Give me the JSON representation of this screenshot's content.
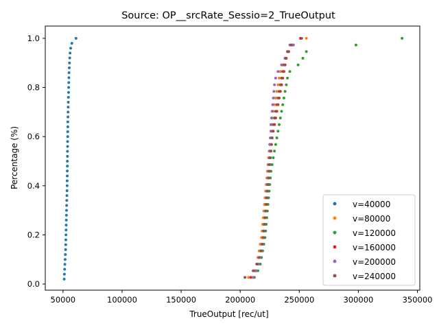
{
  "chart_data": {
    "type": "scatter",
    "title": "Source: OP__srcRate_Sessio=2_TrueOutput",
    "xlabel": "TrueOutput [rec/ut]",
    "ylabel": "Percentage (%)",
    "xlim": [
      35000,
      352000
    ],
    "ylim": [
      -0.025,
      1.05
    ],
    "xticks": [
      50000,
      100000,
      150000,
      200000,
      250000,
      300000,
      350000
    ],
    "xtick_labels": [
      "50000",
      "100000",
      "150000",
      "200000",
      "250000",
      "300000",
      "350000"
    ],
    "yticks": [
      0.0,
      0.2,
      0.4,
      0.6,
      0.8,
      1.0
    ],
    "ytick_labels": [
      "0.0",
      "0.2",
      "0.4",
      "0.6",
      "0.8",
      "1.0"
    ],
    "grid": false,
    "legend_position": "lower-right",
    "series": [
      {
        "name": "v=40000",
        "color": "#1f77b4",
        "points": [
          [
            51000,
            0.02
          ],
          [
            51200,
            0.04
          ],
          [
            51400,
            0.06
          ],
          [
            51600,
            0.08
          ],
          [
            51800,
            0.1
          ],
          [
            52000,
            0.12
          ],
          [
            52200,
            0.14
          ],
          [
            52300,
            0.16
          ],
          [
            52400,
            0.18
          ],
          [
            52500,
            0.2
          ],
          [
            52600,
            0.22
          ],
          [
            52700,
            0.24
          ],
          [
            52800,
            0.26
          ],
          [
            52900,
            0.28
          ],
          [
            53000,
            0.3
          ],
          [
            53100,
            0.32
          ],
          [
            53200,
            0.34
          ],
          [
            53300,
            0.36
          ],
          [
            53400,
            0.38
          ],
          [
            53500,
            0.4
          ],
          [
            53500,
            0.42
          ],
          [
            53600,
            0.44
          ],
          [
            53600,
            0.46
          ],
          [
            53700,
            0.48
          ],
          [
            53700,
            0.5
          ],
          [
            53800,
            0.52
          ],
          [
            53800,
            0.54
          ],
          [
            53900,
            0.56
          ],
          [
            53900,
            0.58
          ],
          [
            54000,
            0.6
          ],
          [
            54000,
            0.62
          ],
          [
            54100,
            0.64
          ],
          [
            54100,
            0.66
          ],
          [
            54200,
            0.68
          ],
          [
            54300,
            0.7
          ],
          [
            54400,
            0.72
          ],
          [
            54500,
            0.74
          ],
          [
            54600,
            0.76
          ],
          [
            54700,
            0.78
          ],
          [
            54800,
            0.8
          ],
          [
            54900,
            0.82
          ],
          [
            55000,
            0.84
          ],
          [
            55100,
            0.86
          ],
          [
            55300,
            0.88
          ],
          [
            55500,
            0.9
          ],
          [
            55700,
            0.92
          ],
          [
            56000,
            0.94
          ],
          [
            56500,
            0.96
          ],
          [
            57500,
            0.98
          ],
          [
            61000,
            1.0
          ]
        ]
      },
      {
        "name": "v=80000",
        "color": "#ff7f0e",
        "points": [
          [
            207000,
            0.027
          ],
          [
            212000,
            0.054
          ],
          [
            214000,
            0.081
          ],
          [
            215000,
            0.108
          ],
          [
            216000,
            0.135
          ],
          [
            217000,
            0.162
          ],
          [
            218000,
            0.189
          ],
          [
            218500,
            0.216
          ],
          [
            219000,
            0.243
          ],
          [
            219500,
            0.27
          ],
          [
            220000,
            0.297
          ],
          [
            220500,
            0.324
          ],
          [
            221000,
            0.351
          ],
          [
            221500,
            0.378
          ],
          [
            222000,
            0.405
          ],
          [
            222500,
            0.432
          ],
          [
            223000,
            0.459
          ],
          [
            223500,
            0.486
          ],
          [
            224000,
            0.514
          ],
          [
            224500,
            0.541
          ],
          [
            225000,
            0.568
          ],
          [
            225500,
            0.595
          ],
          [
            226000,
            0.622
          ],
          [
            226500,
            0.649
          ],
          [
            227000,
            0.676
          ],
          [
            228000,
            0.703
          ],
          [
            229000,
            0.73
          ],
          [
            230000,
            0.757
          ],
          [
            231000,
            0.784
          ],
          [
            232000,
            0.811
          ],
          [
            233000,
            0.838
          ],
          [
            234000,
            0.865
          ],
          [
            236000,
            0.892
          ],
          [
            238000,
            0.919
          ],
          [
            241000,
            0.946
          ],
          [
            245000,
            0.973
          ],
          [
            256000,
            1.0
          ]
        ]
      },
      {
        "name": "v=120000",
        "color": "#2ca02c",
        "points": [
          [
            212000,
            0.027
          ],
          [
            215000,
            0.054
          ],
          [
            217000,
            0.081
          ],
          [
            218000,
            0.108
          ],
          [
            219000,
            0.135
          ],
          [
            220000,
            0.162
          ],
          [
            221000,
            0.189
          ],
          [
            221500,
            0.216
          ],
          [
            222000,
            0.243
          ],
          [
            222500,
            0.27
          ],
          [
            223000,
            0.297
          ],
          [
            223500,
            0.324
          ],
          [
            224000,
            0.351
          ],
          [
            224500,
            0.378
          ],
          [
            225000,
            0.405
          ],
          [
            225500,
            0.432
          ],
          [
            226000,
            0.459
          ],
          [
            227000,
            0.486
          ],
          [
            228000,
            0.514
          ],
          [
            229000,
            0.541
          ],
          [
            230000,
            0.568
          ],
          [
            231000,
            0.595
          ],
          [
            232000,
            0.622
          ],
          [
            233000,
            0.649
          ],
          [
            234000,
            0.676
          ],
          [
            235000,
            0.703
          ],
          [
            236000,
            0.73
          ],
          [
            237000,
            0.757
          ],
          [
            238000,
            0.784
          ],
          [
            239000,
            0.811
          ],
          [
            240000,
            0.838
          ],
          [
            242000,
            0.865
          ],
          [
            249000,
            0.892
          ],
          [
            253000,
            0.919
          ],
          [
            256000,
            0.946
          ],
          [
            298000,
            0.973
          ],
          [
            337000,
            1.0
          ]
        ]
      },
      {
        "name": "v=160000",
        "color": "#d62728",
        "points": [
          [
            209000,
            0.027
          ],
          [
            213000,
            0.054
          ],
          [
            215000,
            0.081
          ],
          [
            216500,
            0.108
          ],
          [
            217500,
            0.135
          ],
          [
            218500,
            0.162
          ],
          [
            219500,
            0.189
          ],
          [
            220000,
            0.216
          ],
          [
            220500,
            0.243
          ],
          [
            221000,
            0.27
          ],
          [
            221500,
            0.297
          ],
          [
            222000,
            0.324
          ],
          [
            222500,
            0.351
          ],
          [
            223000,
            0.378
          ],
          [
            223500,
            0.405
          ],
          [
            224000,
            0.432
          ],
          [
            224500,
            0.459
          ],
          [
            225000,
            0.486
          ],
          [
            225500,
            0.514
          ],
          [
            226000,
            0.541
          ],
          [
            226500,
            0.568
          ],
          [
            227000,
            0.595
          ],
          [
            228000,
            0.622
          ],
          [
            229000,
            0.649
          ],
          [
            230000,
            0.676
          ],
          [
            231000,
            0.703
          ],
          [
            232000,
            0.73
          ],
          [
            233000,
            0.757
          ],
          [
            234000,
            0.784
          ],
          [
            235000,
            0.811
          ],
          [
            236000,
            0.838
          ],
          [
            237000,
            0.865
          ],
          [
            238000,
            0.892
          ],
          [
            239000,
            0.919
          ],
          [
            241000,
            0.946
          ],
          [
            244000,
            0.973
          ],
          [
            251000,
            1.0
          ]
        ]
      },
      {
        "name": "v=200000",
        "color": "#9467bd",
        "points": [
          [
            211000,
            0.027
          ],
          [
            213500,
            0.054
          ],
          [
            215500,
            0.081
          ],
          [
            217000,
            0.108
          ],
          [
            218000,
            0.135
          ],
          [
            219000,
            0.162
          ],
          [
            219500,
            0.189
          ],
          [
            220000,
            0.216
          ],
          [
            220500,
            0.243
          ],
          [
            221000,
            0.27
          ],
          [
            221500,
            0.297
          ],
          [
            222000,
            0.324
          ],
          [
            222000,
            0.351
          ],
          [
            222500,
            0.378
          ],
          [
            223000,
            0.405
          ],
          [
            223500,
            0.432
          ],
          [
            224000,
            0.459
          ],
          [
            224000,
            0.486
          ],
          [
            224500,
            0.514
          ],
          [
            225000,
            0.541
          ],
          [
            225000,
            0.568
          ],
          [
            225500,
            0.595
          ],
          [
            226000,
            0.622
          ],
          [
            226000,
            0.649
          ],
          [
            226500,
            0.676
          ],
          [
            227000,
            0.703
          ],
          [
            227500,
            0.73
          ],
          [
            228000,
            0.757
          ],
          [
            228500,
            0.784
          ],
          [
            229000,
            0.811
          ],
          [
            230000,
            0.838
          ],
          [
            232000,
            0.865
          ],
          [
            235000,
            0.892
          ],
          [
            238000,
            0.919
          ],
          [
            240000,
            0.946
          ],
          [
            242000,
            0.973
          ],
          [
            245000,
            0.973
          ]
        ]
      },
      {
        "name": "v=240000",
        "color": "#8c564b",
        "points": [
          [
            204000,
            0.027
          ],
          [
            211000,
            0.054
          ],
          [
            214000,
            0.081
          ],
          [
            216000,
            0.108
          ],
          [
            217500,
            0.135
          ],
          [
            218500,
            0.162
          ],
          [
            219500,
            0.189
          ],
          [
            220000,
            0.216
          ],
          [
            220500,
            0.243
          ],
          [
            221000,
            0.27
          ],
          [
            221500,
            0.297
          ],
          [
            222000,
            0.324
          ],
          [
            222500,
            0.351
          ],
          [
            223000,
            0.378
          ],
          [
            223500,
            0.405
          ],
          [
            224000,
            0.432
          ],
          [
            224500,
            0.459
          ],
          [
            225000,
            0.486
          ],
          [
            225500,
            0.514
          ],
          [
            226000,
            0.541
          ],
          [
            226500,
            0.568
          ],
          [
            227000,
            0.595
          ],
          [
            227500,
            0.622
          ],
          [
            228000,
            0.649
          ],
          [
            229000,
            0.676
          ],
          [
            230000,
            0.703
          ],
          [
            231000,
            0.73
          ],
          [
            232000,
            0.757
          ],
          [
            233000,
            0.784
          ],
          [
            234000,
            0.811
          ],
          [
            235000,
            0.838
          ],
          [
            236000,
            0.865
          ],
          [
            237000,
            0.892
          ],
          [
            238500,
            0.919
          ],
          [
            240000,
            0.946
          ],
          [
            243000,
            0.973
          ],
          [
            252000,
            1.0
          ]
        ]
      }
    ]
  }
}
